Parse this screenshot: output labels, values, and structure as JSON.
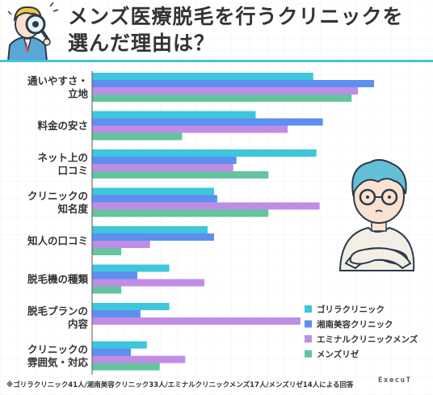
{
  "title": {
    "line1": "メンズ医療脱毛を行うクリニックを",
    "line2": "選んだ理由は？"
  },
  "footnote": "※ゴリラクリニック41人/湘南美容クリニック33人/エミナルクリニックメンズ17人/メンズリゼ14人による回答",
  "logo": "ExecuT",
  "colors": {
    "ゴリラクリニック": "#3ec6dc",
    "湘南美容クリニック": "#5c8ff0",
    "エミナルクリニックメンズ": "#c08de6",
    "メンズリゼ": "#63c49d",
    "accent_line": "#44c3e0"
  },
  "chart_data": {
    "type": "bar",
    "orientation": "horizontal",
    "categories": [
      [
        "通いやすさ・",
        "立地"
      ],
      [
        "料金の安さ"
      ],
      [
        "ネット上の",
        "口コミ"
      ],
      [
        "クリニックの",
        "知名度"
      ],
      [
        "知人の口コミ"
      ],
      [
        "脱毛機の種類"
      ],
      [
        "脱毛プランの",
        "内容"
      ],
      [
        "クリニックの",
        "雰囲気・対応"
      ]
    ],
    "series": [
      {
        "name": "ゴリラクリニック",
        "values": [
          0.69,
          0.51,
          0.7,
          0.38,
          0.36,
          0.24,
          0.24,
          0.17
        ]
      },
      {
        "name": "湘南美容クリニック",
        "values": [
          0.88,
          0.72,
          0.45,
          0.39,
          0.38,
          0.14,
          0.15,
          0.12
        ]
      },
      {
        "name": "エミナルクリニックメンズ",
        "values": [
          0.83,
          0.61,
          0.44,
          0.71,
          0.18,
          0.35,
          0.65,
          0.29
        ]
      },
      {
        "name": "メンズリゼ",
        "values": [
          0.81,
          0.28,
          0.55,
          0.55,
          0.09,
          0.09,
          0.0,
          0.21
        ]
      }
    ],
    "legend_position": "bottom-right",
    "grid": false
  },
  "illustration": {
    "top_left": "man-with-magnifier-icon",
    "right": "thinking-man-arms-crossed-icon"
  }
}
